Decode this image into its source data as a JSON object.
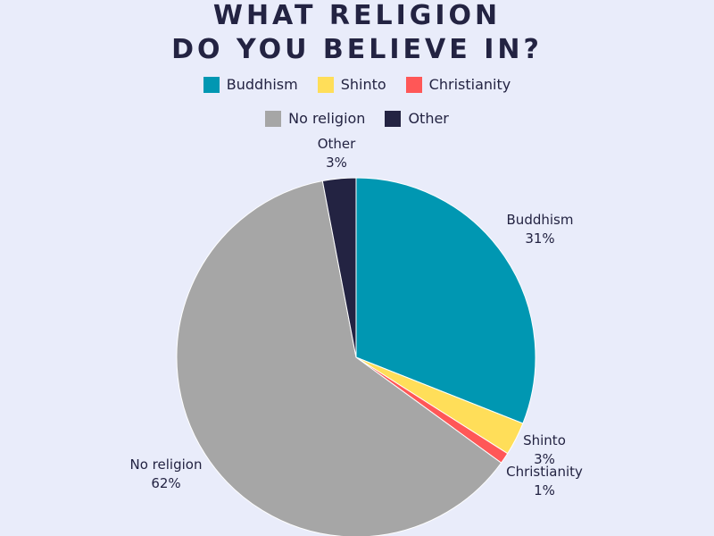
{
  "title_lines": [
    "WHAT RELIGION",
    "DO YOU BELIEVE IN?"
  ],
  "legend": {
    "rows": [
      [
        {
          "label": "Buddhism",
          "color": "#0097b2"
        },
        {
          "label": "Shinto",
          "color": "#ffde59"
        },
        {
          "label": "Christianity",
          "color": "#ff5757"
        }
      ],
      [
        {
          "label": "No religion",
          "color": "#a6a6a6"
        },
        {
          "label": "Other",
          "color": "#232342"
        }
      ]
    ]
  },
  "chart_data": {
    "type": "pie",
    "title": "WHAT RELIGION DO YOU BELIEVE IN?",
    "slices": [
      {
        "label": "Buddhism",
        "value": 31,
        "display": "31%",
        "color": "#0097b2"
      },
      {
        "label": "Shinto",
        "value": 3,
        "display": "3%",
        "color": "#ffde59"
      },
      {
        "label": "Christianity",
        "value": 1,
        "display": "1%",
        "color": "#ff5757"
      },
      {
        "label": "No religion",
        "value": 62,
        "display": "62%",
        "color": "#a6a6a6"
      },
      {
        "label": "Other",
        "value": 3,
        "display": "3%",
        "color": "#232342"
      }
    ],
    "start": "12 o'clock",
    "direction": "clockwise",
    "legend_position": "top"
  }
}
